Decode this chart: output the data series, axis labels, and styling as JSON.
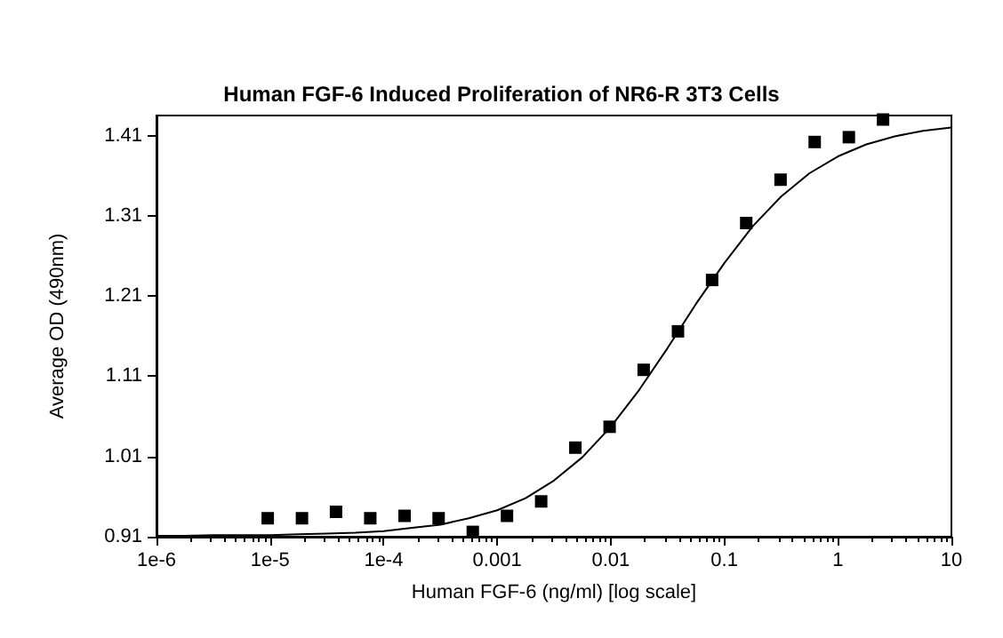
{
  "chart_data": {
    "type": "scatter",
    "title": "Human FGF-6 Induced Proliferation of NR6-R 3T3 Cells",
    "xlabel": "Human FGF-6 (ng/ml) [log scale]",
    "ylabel": "Average OD (490nm)",
    "series": [
      {
        "color": "#000000",
        "marker": "square",
        "x": [
          9.54e-06,
          1.91e-05,
          3.81e-05,
          7.63e-05,
          0.000153,
          0.000305,
          0.00061,
          0.00122,
          0.00244,
          0.00488,
          0.00977,
          0.0195,
          0.0391,
          0.0781,
          0.156,
          0.313,
          0.625,
          1.25,
          2.5
        ],
        "values": [
          0.933,
          0.933,
          0.941,
          0.933,
          0.936,
          0.933,
          0.916,
          0.936,
          0.954,
          1.021,
          1.047,
          1.118,
          1.166,
          1.23,
          1.301,
          1.355,
          1.402,
          1.408,
          1.43
        ]
      },
      {
        "type": "line",
        "color": "#000000",
        "marker": "none",
        "line_style": "solid",
        "x": [
          1e-06,
          1.78e-06,
          3.16e-06,
          5.62e-06,
          1e-05,
          1.78e-05,
          3.16e-05,
          5.62e-05,
          0.0001,
          0.000178,
          0.000316,
          0.000562,
          0.001,
          0.00178,
          0.00316,
          0.00562,
          0.01,
          0.0178,
          0.0316,
          0.0562,
          0.1,
          0.178,
          0.316,
          0.562,
          1,
          1.78,
          3.16,
          5.62,
          10
        ],
        "values": [
          0.911,
          0.911,
          0.912,
          0.912,
          0.912,
          0.913,
          0.914,
          0.915,
          0.917,
          0.921,
          0.925,
          0.933,
          0.943,
          0.958,
          0.98,
          1.009,
          1.047,
          1.093,
          1.145,
          1.2,
          1.251,
          1.297,
          1.334,
          1.363,
          1.384,
          1.399,
          1.409,
          1.416,
          1.42
        ]
      }
    ],
    "log": "x",
    "xlim": [
      1e-06,
      10
    ],
    "xticks": [
      {
        "value": 1e-06,
        "label": "1e-6"
      },
      {
        "value": 1e-05,
        "label": "1e-5"
      },
      {
        "value": 0.0001,
        "label": "1e-4"
      },
      0.001,
      0.01,
      0.1,
      1,
      10
    ],
    "ylim": [
      0.91,
      1.435
    ],
    "yticks": [
      0.91,
      1.01,
      1.11,
      1.21,
      1.31,
      1.41
    ],
    "grid": false
  }
}
